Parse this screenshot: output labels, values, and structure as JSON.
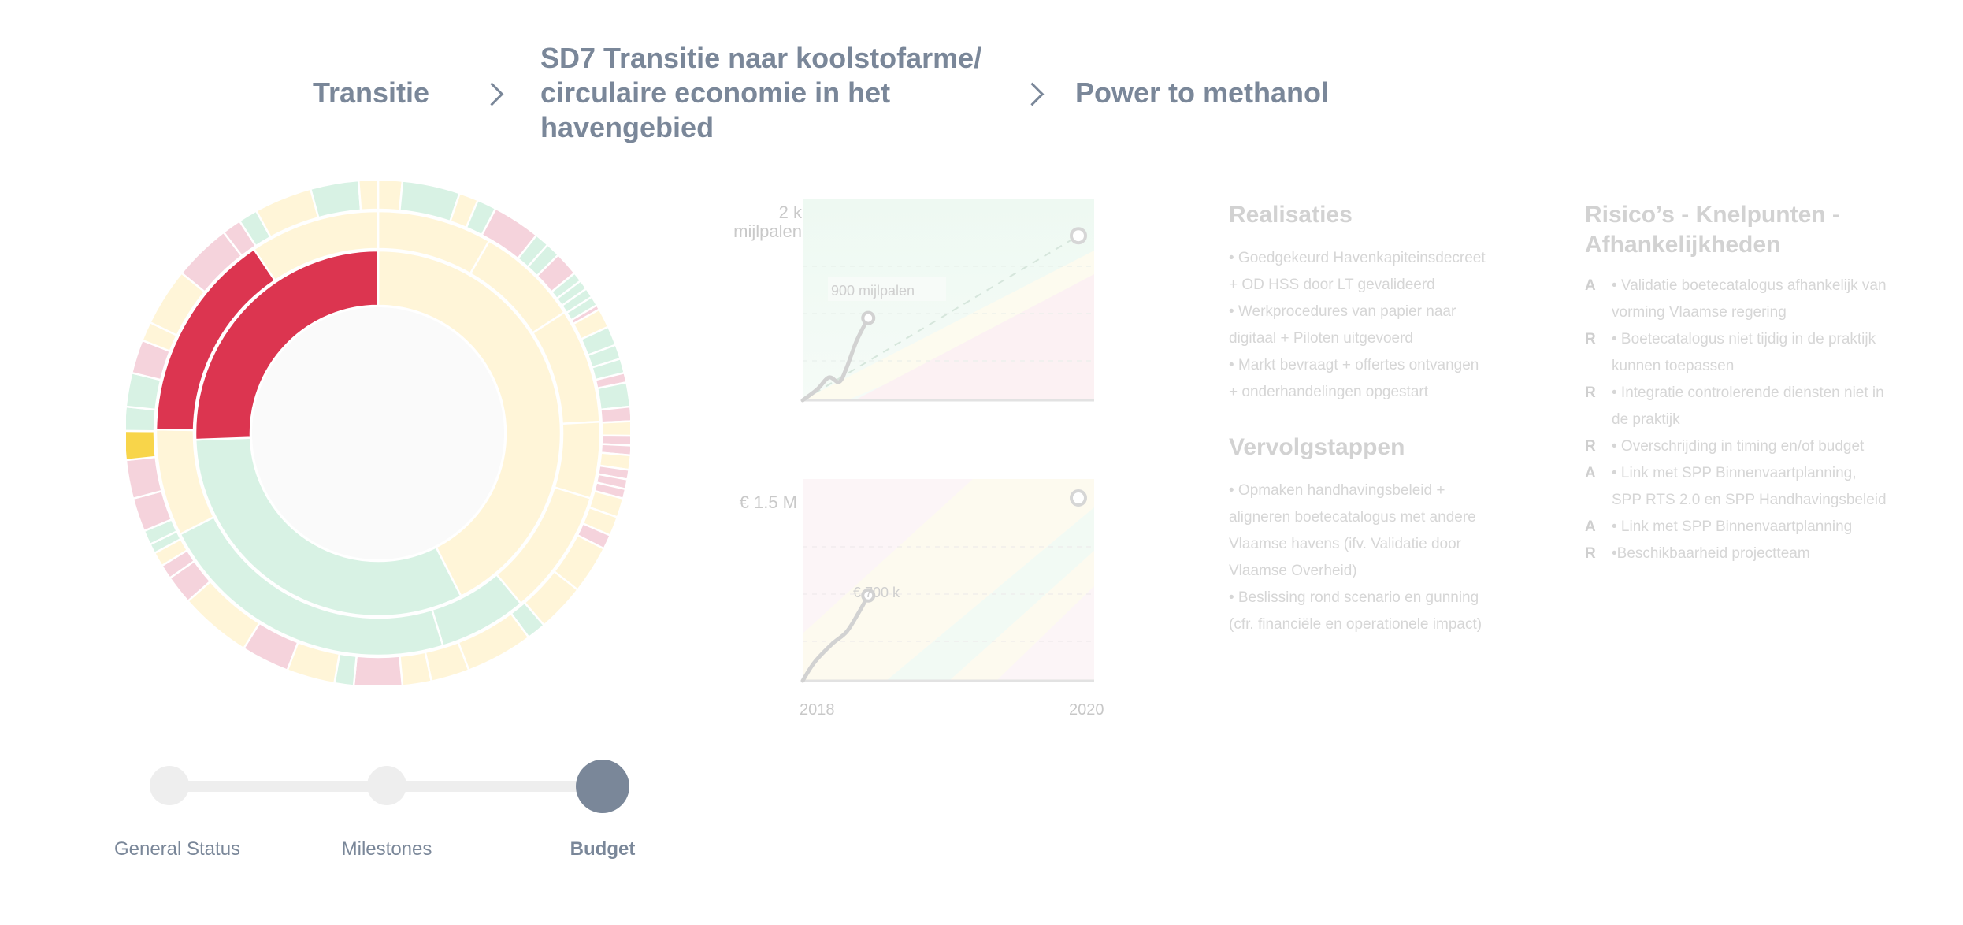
{
  "breadcrumb": {
    "level1": "Transitie",
    "level2_lines": [
      "SD7 Transitie naar koolstofarme/",
      "circulaire economie in het",
      "havengebied"
    ],
    "level3": "Power to methanol"
  },
  "colors": {
    "red": "#dc3550",
    "pink": "#f5d3dc",
    "cream": "#fff5d8",
    "mint": "#d8f2e4",
    "yellow": "#f8d54a",
    "slate": "#7a8799",
    "track": "#eeeeee",
    "inactive": "#eeeeee"
  },
  "sunburst": {
    "inner": [
      {
        "color": "cream",
        "value": 153
      },
      {
        "color": "mint",
        "value": 115
      },
      {
        "color": "red",
        "value": 92
      }
    ],
    "middle": [
      {
        "color": "cream",
        "value": 30
      },
      {
        "color": "cream",
        "value": 27
      },
      {
        "color": "cream",
        "value": 30
      },
      {
        "color": "cream",
        "value": 20
      },
      {
        "color": "cream",
        "value": 33
      },
      {
        "color": "mint",
        "value": 23
      },
      {
        "color": "mint",
        "value": 80
      },
      {
        "color": "cream",
        "value": 28
      },
      {
        "color": "red",
        "value": 55
      },
      {
        "color": "cream",
        "value": 34
      }
    ],
    "outer": [
      {
        "color": "cream",
        "value": 5
      },
      {
        "color": "mint",
        "value": 12
      },
      {
        "color": "cream",
        "value": 4
      },
      {
        "color": "mint",
        "value": 4
      },
      {
        "color": "pink",
        "value": 10
      },
      {
        "color": "mint",
        "value": 3
      },
      {
        "color": "mint",
        "value": 3
      },
      {
        "color": "pink",
        "value": 5
      },
      {
        "color": "mint",
        "value": 2
      },
      {
        "color": "mint",
        "value": 2
      },
      {
        "color": "mint",
        "value": 2
      },
      {
        "color": "mint",
        "value": 2
      },
      {
        "color": "pink",
        "value": 1
      },
      {
        "color": "cream",
        "value": 4
      },
      {
        "color": "mint",
        "value": 4
      },
      {
        "color": "mint",
        "value": 3
      },
      {
        "color": "mint",
        "value": 3
      },
      {
        "color": "pink",
        "value": 2
      },
      {
        "color": "mint",
        "value": 5
      },
      {
        "color": "pink",
        "value": 3
      },
      {
        "color": "cream",
        "value": 3
      },
      {
        "color": "pink",
        "value": 2
      },
      {
        "color": "pink",
        "value": 2
      },
      {
        "color": "cream",
        "value": 3
      },
      {
        "color": "pink",
        "value": 2
      },
      {
        "color": "pink",
        "value": 2
      },
      {
        "color": "pink",
        "value": 2
      },
      {
        "color": "cream",
        "value": 4
      },
      {
        "color": "cream",
        "value": 4
      },
      {
        "color": "pink",
        "value": 3
      },
      {
        "color": "cream",
        "value": 10
      },
      {
        "color": "cream",
        "value": 10
      },
      {
        "color": "mint",
        "value": 4
      },
      {
        "color": "cream",
        "value": 14
      },
      {
        "color": "cream",
        "value": 8
      },
      {
        "color": "cream",
        "value": 6
      },
      {
        "color": "pink",
        "value": 10
      },
      {
        "color": "mint",
        "value": 4
      },
      {
        "color": "cream",
        "value": 10
      },
      {
        "color": "pink",
        "value": 10
      },
      {
        "color": "cream",
        "value": 15
      },
      {
        "color": "pink",
        "value": 6
      },
      {
        "color": "pink",
        "value": 3
      },
      {
        "color": "cream",
        "value": 3
      },
      {
        "color": "mint",
        "value": 2
      },
      {
        "color": "mint",
        "value": 3
      },
      {
        "color": "pink",
        "value": 7
      },
      {
        "color": "pink",
        "value": 8
      },
      {
        "color": "yellow",
        "value": 6
      },
      {
        "color": "mint",
        "value": 5
      },
      {
        "color": "mint",
        "value": 7
      },
      {
        "color": "pink",
        "value": 7
      },
      {
        "color": "cream",
        "value": 4
      },
      {
        "color": "cream",
        "value": 12
      },
      {
        "color": "pink",
        "value": 12
      },
      {
        "color": "pink",
        "value": 4
      },
      {
        "color": "mint",
        "value": 4
      },
      {
        "color": "cream",
        "value": 12
      },
      {
        "color": "mint",
        "value": 10
      },
      {
        "color": "cream",
        "value": 4
      }
    ]
  },
  "milestones_chart": {
    "axis_top": "2 k",
    "axis_unit": "mijlpalen",
    "current_label": "900 mijlpalen"
  },
  "budget_chart": {
    "axis_top": "€ 1.5 M",
    "current_label": "€ 700 k",
    "year_start": "2018",
    "year_end": "2020"
  },
  "chart_data": [
    {
      "type": "line",
      "title": "",
      "ylabel": "mijlpalen",
      "xlim": [
        2018,
        2020
      ],
      "ylim": [
        0,
        2000
      ],
      "series": [
        {
          "x": [
            2018.0,
            2018.1,
            2018.18,
            2018.25,
            2018.3,
            2018.37,
            2018.45
          ],
          "y": [
            0,
            120,
            250,
            200,
            350,
            650,
            900
          ]
        }
      ],
      "target": {
        "x": [
          2018,
          2020
        ],
        "y": [
          0,
          1800
        ]
      }
    },
    {
      "type": "line",
      "title": "",
      "ylabel": "€",
      "xlim": [
        2018,
        2020
      ],
      "ylim": [
        0,
        1500000
      ],
      "x_ticks": [
        "2018",
        "2020"
      ],
      "series": [
        {
          "x": [
            2018.0,
            2018.08,
            2018.2,
            2018.3,
            2018.38,
            2018.45
          ],
          "y": [
            0,
            150000,
            300000,
            400000,
            550000,
            700000
          ]
        }
      ],
      "target": {
        "x": [
          2020
        ],
        "y": [
          1500000
        ]
      }
    }
  ],
  "realisaties": {
    "title": "Realisaties",
    "lines": [
      "• Goedgekeurd Havenkapiteinsdecreet",
      "+ OD HSS door LT gevalideerd",
      "• Werkprocedures van papier naar",
      "digitaal + Piloten uitgevoerd",
      "• Markt bevraagt + offertes ontvangen",
      "+ onderhandelingen opgestart"
    ]
  },
  "vervolgstappen": {
    "title": "Vervolgstappen",
    "lines": [
      "• Opmaken handhavingsbeleid +",
      "aligneren boetecatalogus met andere",
      "Vlaamse havens (ifv. Validatie door",
      "Vlaamse Overheid)",
      "• Beslissing rond scenario en gunning",
      "(cfr. financiële en operationele impact)"
    ]
  },
  "risicos": {
    "title_lines": [
      "Risico’s - Knelpunten -",
      "Afhankelijkheden"
    ],
    "items": [
      {
        "type": "A",
        "lines": [
          "• Validatie boetecatalogus afhankelijk van",
          "vorming Vlaamse regering"
        ]
      },
      {
        "type": "R",
        "lines": [
          "• Boetecatalogus niet tijdig in de praktijk",
          "kunnen toepassen"
        ]
      },
      {
        "type": "R",
        "lines": [
          "• Integratie controlerende diensten niet in",
          "de praktijk"
        ]
      },
      {
        "type": "R",
        "lines": [
          "• Overschrijding in timing en/of budget"
        ]
      },
      {
        "type": "A",
        "lines": [
          "• Link met SPP Binnenvaartplanning,",
          "SPP RTS 2.0 en SPP Handhavingsbeleid"
        ]
      },
      {
        "type": "A",
        "lines": [
          "• Link met SPP Binnenvaartplanning"
        ]
      },
      {
        "type": "R",
        "lines": [
          "•Beschikbaarheid projectteam"
        ]
      }
    ]
  },
  "nav": {
    "items": [
      {
        "label": "General Status",
        "active": false
      },
      {
        "label": "Milestones",
        "active": false
      },
      {
        "label": "Budget",
        "active": true
      }
    ]
  }
}
